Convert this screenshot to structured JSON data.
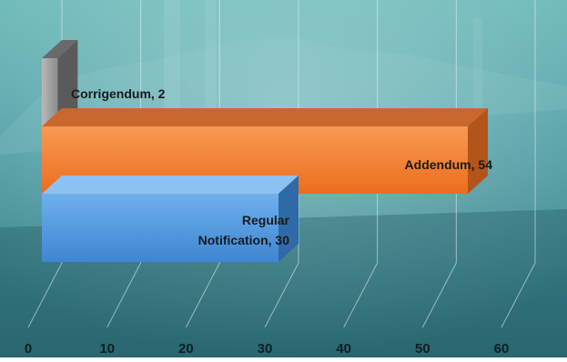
{
  "chart_data": {
    "type": "bar",
    "orientation": "horizontal",
    "style": "3d",
    "categories": [
      "Regular Notification",
      "Addendum",
      "Corrigendum"
    ],
    "values": [
      30,
      54,
      2
    ],
    "colors": [
      "#5b9bd5",
      "#ed7d31",
      "#a5a5a5"
    ],
    "data_labels": [
      "Regular\nNotification, 30",
      "Addendum, 54",
      "Corrigendum, 2"
    ],
    "xlim": [
      0,
      60
    ],
    "xticks": [
      0,
      10,
      20,
      30,
      40,
      50,
      60
    ],
    "grid": true,
    "legend": "none",
    "title": "",
    "xlabel": "",
    "ylabel": ""
  }
}
